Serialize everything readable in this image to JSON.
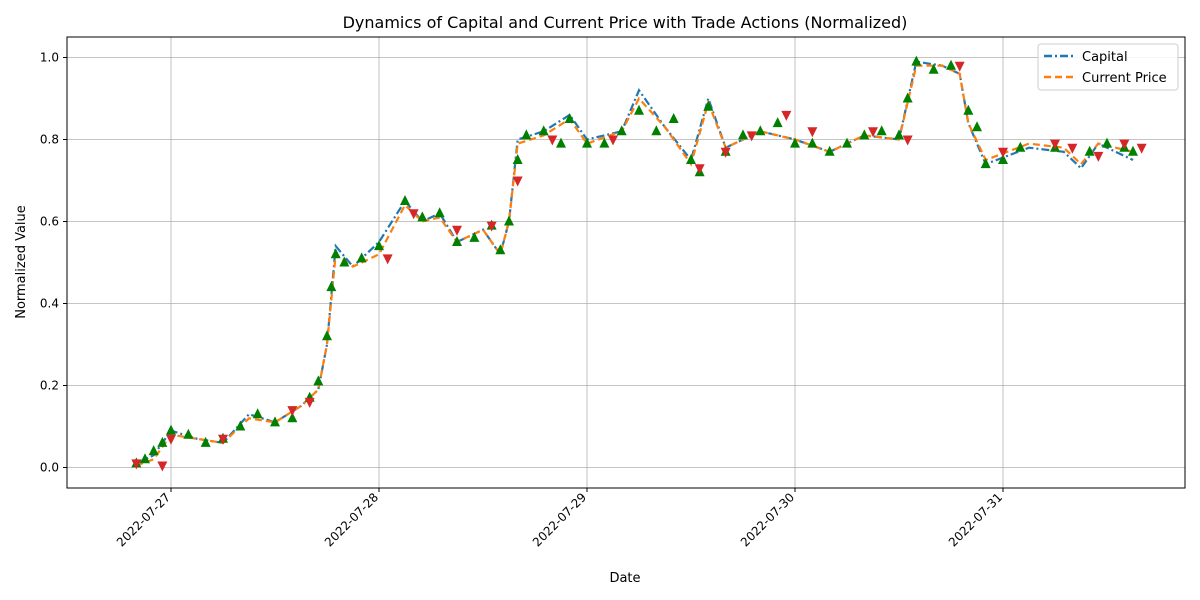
{
  "chart_data": {
    "type": "line",
    "title": "Dynamics of Capital and Current Price with Trade Actions (Normalized)",
    "xlabel": "Date",
    "ylabel": "Normalized Value",
    "xlim": [
      "2022-07-26 12:00",
      "2022-07-31 21:00"
    ],
    "ylim": [
      -0.05,
      1.05
    ],
    "x_ticks": [
      "2022-07-27",
      "2022-07-28",
      "2022-07-29",
      "2022-07-30",
      "2022-07-31"
    ],
    "y_ticks": [
      0.0,
      0.2,
      0.4,
      0.6,
      0.8,
      1.0
    ],
    "y_tick_labels": [
      "0.0",
      "0.2",
      "0.4",
      "0.6",
      "0.8",
      "1.0"
    ],
    "grid": true,
    "legend_position": "top-right",
    "series": [
      {
        "name": "Capital",
        "color": "#1f77b4",
        "linestyle": "dash-dot",
        "points": [
          [
            "2022-07-26 20:00",
            0.01
          ],
          [
            "2022-07-26 22:00",
            0.03
          ],
          [
            "2022-07-27 00:00",
            0.09
          ],
          [
            "2022-07-27 03:00",
            0.07
          ],
          [
            "2022-07-27 06:00",
            0.06
          ],
          [
            "2022-07-27 09:00",
            0.13
          ],
          [
            "2022-07-27 12:00",
            0.11
          ],
          [
            "2022-07-27 15:00",
            0.15
          ],
          [
            "2022-07-27 17:00",
            0.19
          ],
          [
            "2022-07-27 18:00",
            0.3
          ],
          [
            "2022-07-27 19:00",
            0.54
          ],
          [
            "2022-07-27 21:00",
            0.49
          ],
          [
            "2022-07-28 00:00",
            0.55
          ],
          [
            "2022-07-28 03:00",
            0.65
          ],
          [
            "2022-07-28 05:00",
            0.6
          ],
          [
            "2022-07-28 07:00",
            0.62
          ],
          [
            "2022-07-28 09:00",
            0.55
          ],
          [
            "2022-07-28 12:00",
            0.58
          ],
          [
            "2022-07-28 14:00",
            0.52
          ],
          [
            "2022-07-28 15:00",
            0.6
          ],
          [
            "2022-07-28 16:00",
            0.8
          ],
          [
            "2022-07-28 19:00",
            0.82
          ],
          [
            "2022-07-28 22:00",
            0.86
          ],
          [
            "2022-07-29 00:00",
            0.8
          ],
          [
            "2022-07-29 04:00",
            0.82
          ],
          [
            "2022-07-29 06:00",
            0.92
          ],
          [
            "2022-07-29 09:00",
            0.83
          ],
          [
            "2022-07-29 12:00",
            0.75
          ],
          [
            "2022-07-29 14:00",
            0.9
          ],
          [
            "2022-07-29 16:00",
            0.78
          ],
          [
            "2022-07-29 20:00",
            0.82
          ],
          [
            "2022-07-30 00:00",
            0.8
          ],
          [
            "2022-07-30 04:00",
            0.77
          ],
          [
            "2022-07-30 08:00",
            0.81
          ],
          [
            "2022-07-30 12:00",
            0.8
          ],
          [
            "2022-07-30 14:00",
            0.99
          ],
          [
            "2022-07-30 17:00",
            0.98
          ],
          [
            "2022-07-30 19:00",
            0.96
          ],
          [
            "2022-07-30 20:00",
            0.84
          ],
          [
            "2022-07-30 22:00",
            0.74
          ],
          [
            "2022-07-31 03:00",
            0.78
          ],
          [
            "2022-07-31 07:00",
            0.77
          ],
          [
            "2022-07-31 09:00",
            0.73
          ],
          [
            "2022-07-31 11:00",
            0.79
          ],
          [
            "2022-07-31 15:00",
            0.75
          ]
        ]
      },
      {
        "name": "Current Price",
        "color": "#ff7f0e",
        "linestyle": "dashed",
        "points": [
          [
            "2022-07-26 20:00",
            0.005
          ],
          [
            "2022-07-26 22:00",
            0.02
          ],
          [
            "2022-07-27 00:00",
            0.08
          ],
          [
            "2022-07-27 03:00",
            0.07
          ],
          [
            "2022-07-27 06:00",
            0.06
          ],
          [
            "2022-07-27 09:00",
            0.12
          ],
          [
            "2022-07-27 12:00",
            0.11
          ],
          [
            "2022-07-27 15:00",
            0.15
          ],
          [
            "2022-07-27 17:00",
            0.19
          ],
          [
            "2022-07-27 18:00",
            0.3
          ],
          [
            "2022-07-27 19:00",
            0.52
          ],
          [
            "2022-07-27 21:00",
            0.49
          ],
          [
            "2022-07-28 00:00",
            0.52
          ],
          [
            "2022-07-28 03:00",
            0.64
          ],
          [
            "2022-07-28 05:00",
            0.6
          ],
          [
            "2022-07-28 07:00",
            0.61
          ],
          [
            "2022-07-28 09:00",
            0.55
          ],
          [
            "2022-07-28 12:00",
            0.58
          ],
          [
            "2022-07-28 14:00",
            0.52
          ],
          [
            "2022-07-28 15:00",
            0.6
          ],
          [
            "2022-07-28 16:00",
            0.79
          ],
          [
            "2022-07-28 19:00",
            0.81
          ],
          [
            "2022-07-28 22:00",
            0.85
          ],
          [
            "2022-07-29 00:00",
            0.79
          ],
          [
            "2022-07-29 04:00",
            0.82
          ],
          [
            "2022-07-29 06:00",
            0.9
          ],
          [
            "2022-07-29 09:00",
            0.83
          ],
          [
            "2022-07-29 12:00",
            0.74
          ],
          [
            "2022-07-29 14:00",
            0.89
          ],
          [
            "2022-07-29 16:00",
            0.78
          ],
          [
            "2022-07-29 20:00",
            0.82
          ],
          [
            "2022-07-30 00:00",
            0.8
          ],
          [
            "2022-07-30 04:00",
            0.77
          ],
          [
            "2022-07-30 08:00",
            0.81
          ],
          [
            "2022-07-30 12:00",
            0.8
          ],
          [
            "2022-07-30 14:00",
            0.98
          ],
          [
            "2022-07-30 17:00",
            0.98
          ],
          [
            "2022-07-30 19:00",
            0.96
          ],
          [
            "2022-07-30 20:00",
            0.84
          ],
          [
            "2022-07-30 22:00",
            0.75
          ],
          [
            "2022-07-31 03:00",
            0.79
          ],
          [
            "2022-07-31 07:00",
            0.78
          ],
          [
            "2022-07-31 09:00",
            0.74
          ],
          [
            "2022-07-31 11:00",
            0.79
          ],
          [
            "2022-07-31 15:00",
            0.77
          ]
        ]
      }
    ],
    "trade_markers": {
      "buy": {
        "color": "#008000",
        "shape": "triangle-up",
        "points": [
          [
            "2022-07-26 20:00",
            0.01
          ],
          [
            "2022-07-26 21:00",
            0.02
          ],
          [
            "2022-07-26 22:00",
            0.04
          ],
          [
            "2022-07-26 23:00",
            0.06
          ],
          [
            "2022-07-27 00:00",
            0.09
          ],
          [
            "2022-07-27 02:00",
            0.08
          ],
          [
            "2022-07-27 04:00",
            0.06
          ],
          [
            "2022-07-27 06:00",
            0.07
          ],
          [
            "2022-07-27 08:00",
            0.1
          ],
          [
            "2022-07-27 10:00",
            0.13
          ],
          [
            "2022-07-27 12:00",
            0.11
          ],
          [
            "2022-07-27 14:00",
            0.12
          ],
          [
            "2022-07-27 16:00",
            0.17
          ],
          [
            "2022-07-27 17:00",
            0.21
          ],
          [
            "2022-07-27 18:00",
            0.32
          ],
          [
            "2022-07-27 18:30",
            0.44
          ],
          [
            "2022-07-27 19:00",
            0.52
          ],
          [
            "2022-07-27 20:00",
            0.5
          ],
          [
            "2022-07-27 22:00",
            0.51
          ],
          [
            "2022-07-28 00:00",
            0.54
          ],
          [
            "2022-07-28 03:00",
            0.65
          ],
          [
            "2022-07-28 05:00",
            0.61
          ],
          [
            "2022-07-28 07:00",
            0.62
          ],
          [
            "2022-07-28 09:00",
            0.55
          ],
          [
            "2022-07-28 11:00",
            0.56
          ],
          [
            "2022-07-28 13:00",
            0.59
          ],
          [
            "2022-07-28 14:00",
            0.53
          ],
          [
            "2022-07-28 15:00",
            0.6
          ],
          [
            "2022-07-28 16:00",
            0.75
          ],
          [
            "2022-07-28 17:00",
            0.81
          ],
          [
            "2022-07-28 19:00",
            0.82
          ],
          [
            "2022-07-28 21:00",
            0.79
          ],
          [
            "2022-07-28 22:00",
            0.85
          ],
          [
            "2022-07-29 00:00",
            0.79
          ],
          [
            "2022-07-29 02:00",
            0.79
          ],
          [
            "2022-07-29 04:00",
            0.82
          ],
          [
            "2022-07-29 06:00",
            0.87
          ],
          [
            "2022-07-29 08:00",
            0.82
          ],
          [
            "2022-07-29 10:00",
            0.85
          ],
          [
            "2022-07-29 12:00",
            0.75
          ],
          [
            "2022-07-29 13:00",
            0.72
          ],
          [
            "2022-07-29 14:00",
            0.88
          ],
          [
            "2022-07-29 16:00",
            0.77
          ],
          [
            "2022-07-29 18:00",
            0.81
          ],
          [
            "2022-07-29 20:00",
            0.82
          ],
          [
            "2022-07-29 22:00",
            0.84
          ],
          [
            "2022-07-30 00:00",
            0.79
          ],
          [
            "2022-07-30 02:00",
            0.79
          ],
          [
            "2022-07-30 04:00",
            0.77
          ],
          [
            "2022-07-30 06:00",
            0.79
          ],
          [
            "2022-07-30 08:00",
            0.81
          ],
          [
            "2022-07-30 10:00",
            0.82
          ],
          [
            "2022-07-30 12:00",
            0.81
          ],
          [
            "2022-07-30 13:00",
            0.9
          ],
          [
            "2022-07-30 14:00",
            0.99
          ],
          [
            "2022-07-30 16:00",
            0.97
          ],
          [
            "2022-07-30 18:00",
            0.98
          ],
          [
            "2022-07-30 20:00",
            0.87
          ],
          [
            "2022-07-30 21:00",
            0.83
          ],
          [
            "2022-07-30 22:00",
            0.74
          ],
          [
            "2022-07-31 00:00",
            0.75
          ],
          [
            "2022-07-31 02:00",
            0.78
          ],
          [
            "2022-07-31 06:00",
            0.78
          ],
          [
            "2022-07-31 10:00",
            0.77
          ],
          [
            "2022-07-31 12:00",
            0.79
          ],
          [
            "2022-07-31 14:00",
            0.78
          ],
          [
            "2022-07-31 15:00",
            0.77
          ]
        ]
      },
      "sell": {
        "color": "#d62728",
        "shape": "triangle-down",
        "points": [
          [
            "2022-07-26 20:00",
            0.01
          ],
          [
            "2022-07-26 23:00",
            0.005
          ],
          [
            "2022-07-27 00:00",
            0.07
          ],
          [
            "2022-07-27 06:00",
            0.07
          ],
          [
            "2022-07-27 14:00",
            0.14
          ],
          [
            "2022-07-27 16:00",
            0.16
          ],
          [
            "2022-07-28 01:00",
            0.51
          ],
          [
            "2022-07-28 04:00",
            0.62
          ],
          [
            "2022-07-28 09:00",
            0.58
          ],
          [
            "2022-07-28 13:00",
            0.59
          ],
          [
            "2022-07-28 16:00",
            0.7
          ],
          [
            "2022-07-28 20:00",
            0.8
          ],
          [
            "2022-07-29 03:00",
            0.8
          ],
          [
            "2022-07-29 13:00",
            0.73
          ],
          [
            "2022-07-29 16:00",
            0.77
          ],
          [
            "2022-07-29 19:00",
            0.81
          ],
          [
            "2022-07-29 23:00",
            0.86
          ],
          [
            "2022-07-30 02:00",
            0.82
          ],
          [
            "2022-07-30 09:00",
            0.82
          ],
          [
            "2022-07-30 13:00",
            0.8
          ],
          [
            "2022-07-30 19:00",
            0.98
          ],
          [
            "2022-07-31 00:00",
            0.77
          ],
          [
            "2022-07-31 06:00",
            0.79
          ],
          [
            "2022-07-31 08:00",
            0.78
          ],
          [
            "2022-07-31 11:00",
            0.76
          ],
          [
            "2022-07-31 14:00",
            0.79
          ],
          [
            "2022-07-31 16:00",
            0.78
          ]
        ]
      }
    }
  }
}
